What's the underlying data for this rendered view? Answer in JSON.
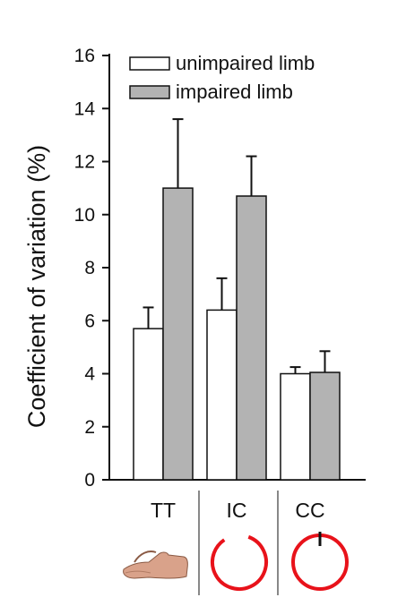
{
  "chart_data": {
    "type": "bar",
    "title": "",
    "xlabel": "",
    "ylabel": "Coefficient of variation (%)",
    "ylim": [
      0,
      16
    ],
    "yticks": [
      0,
      2,
      4,
      6,
      8,
      10,
      12,
      14,
      16
    ],
    "categories": [
      "TT",
      "IC",
      "CC"
    ],
    "series": [
      {
        "name": "unimpaired limb",
        "values": [
          5.7,
          6.4,
          4.0
        ],
        "errors": [
          0.8,
          1.2,
          0.25
        ]
      },
      {
        "name": "impaired limb",
        "values": [
          11.0,
          10.7,
          4.05
        ],
        "errors": [
          2.6,
          1.5,
          0.8
        ]
      }
    ],
    "legend_position": "top",
    "grid": false
  },
  "colors": {
    "unimpaired_fill": "#ffffff",
    "impaired_fill": "#b3b3b3",
    "stroke": "#111111",
    "icon_red": "#e8121a"
  },
  "icons": [
    "hand-tapping-icon",
    "open-circle-icon",
    "closed-circle-icon"
  ]
}
